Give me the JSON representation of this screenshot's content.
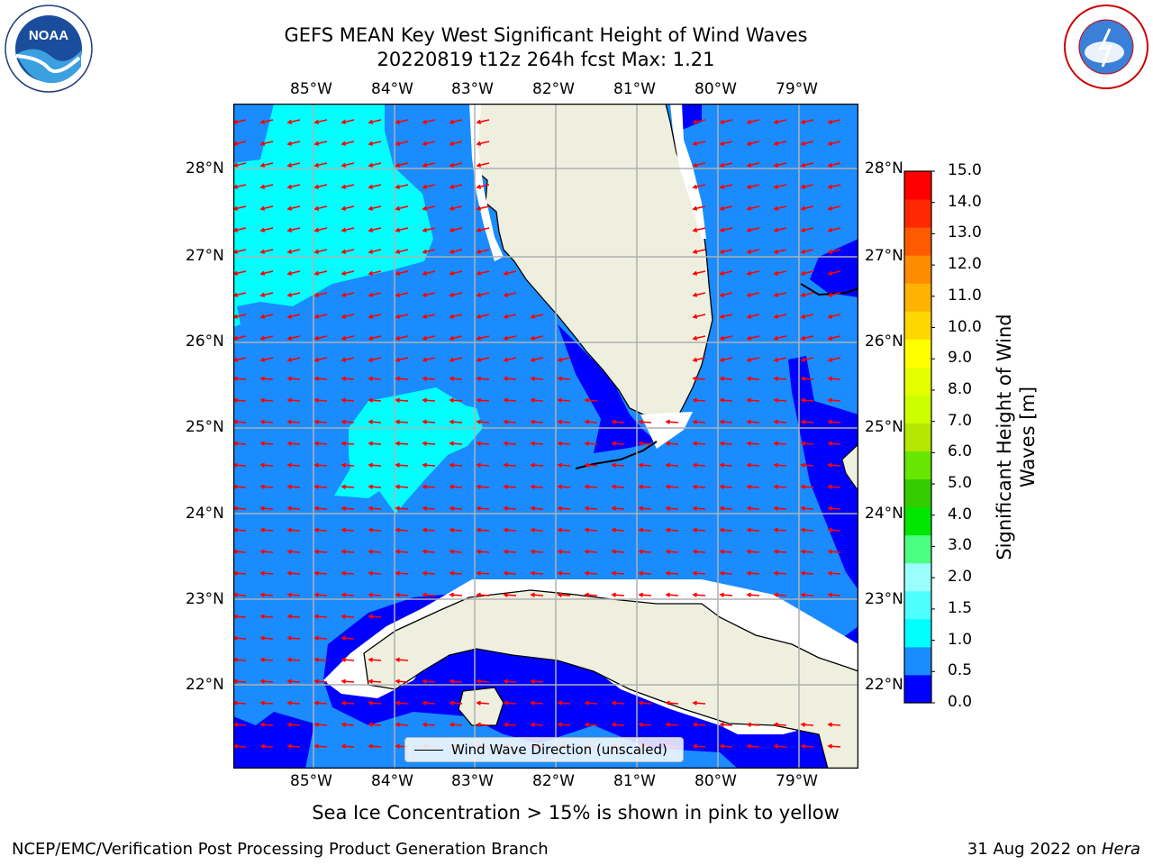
{
  "title": {
    "line1": "GEFS MEAN Key West Significant Height of Wind Waves",
    "line2": "20220819 t12z 264h fcst    Max: 1.21"
  },
  "logos": {
    "left": "NOAA",
    "right_text": "NATIONAL WEATHER SERVICE"
  },
  "map": {
    "lon_labels": [
      "85°W",
      "84°W",
      "83°W",
      "82°W",
      "81°W",
      "80°W",
      "79°W"
    ],
    "lat_labels": [
      "28°N",
      "27°N",
      "26°N",
      "25°N",
      "24°N",
      "23°N",
      "22°N"
    ],
    "legend_label": "Wind Wave Direction (unscaled)",
    "colors": {
      "ocean_main": "#1a8cff",
      "ocean_low": "#0000ff",
      "ocean_high": "#00ffff",
      "land": "#efefdf",
      "arrows": "#ff0000",
      "grid": "#b0b0b0"
    }
  },
  "colorbar": {
    "title": "Significant Height of Wind Waves [m]",
    "labels": [
      "15.0",
      "14.0",
      "13.0",
      "12.0",
      "11.0",
      "10.0",
      "9.0",
      "8.0",
      "7.0",
      "6.0",
      "5.0",
      "4.0",
      "3.0",
      "2.0",
      "1.5",
      "1.0",
      "0.5",
      "0.0"
    ],
    "colors_bottom_to_top": [
      "#0000ff",
      "#1a8cff",
      "#00ffff",
      "#4dffff",
      "#99ffff",
      "#4dff80",
      "#00e600",
      "#33cc00",
      "#66e600",
      "#b3e600",
      "#ccff00",
      "#e6ff00",
      "#ffff00",
      "#ffd700",
      "#ffb300",
      "#ff8c00",
      "#ff5a00",
      "#ff2800",
      "#ff0000"
    ]
  },
  "footnote": "Sea Ice Concentration > 15% is shown in pink to yellow",
  "credit_left": "NCEP/EMC/Verification Post Processing Product Generation Branch",
  "credit_right_prefix": "31 Aug 2022 on ",
  "credit_right_host": "Hera"
}
